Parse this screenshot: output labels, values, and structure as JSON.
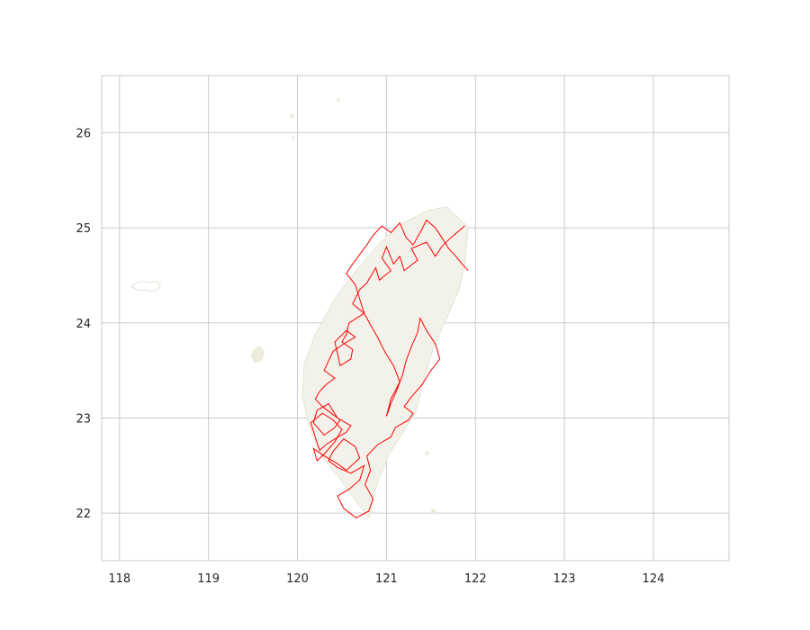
{
  "chart_data": {
    "type": "line",
    "title": "",
    "xlabel": "",
    "ylabel": "",
    "xlim": [
      117.8,
      124.85
    ],
    "ylim": [
      21.5,
      26.6
    ],
    "xticks": [
      118,
      119,
      120,
      121,
      122,
      123,
      124
    ],
    "yticks": [
      22,
      23,
      24,
      25,
      26
    ],
    "grid": true,
    "colors": {
      "route": "#ff0000",
      "land": "#e8e8dc",
      "grid": "#cccccc",
      "frame": "#cccccc",
      "text": "#262626"
    },
    "series": [
      {
        "x": [
          121.88,
          121.73,
          121.62,
          121.55,
          121.45,
          121.28,
          121.35,
          121.2,
          121.15,
          121.08,
          121.0,
          120.95,
          121.05,
          120.92,
          120.88,
          120.78,
          120.7,
          120.62,
          120.75,
          120.58,
          120.55,
          120.5,
          120.62,
          120.6,
          120.48,
          120.45,
          120.42,
          120.55,
          120.65,
          120.52,
          120.4,
          120.35,
          120.3,
          120.42,
          120.32,
          120.25,
          120.2,
          120.28,
          120.38,
          120.48,
          120.42,
          120.3,
          120.18,
          120.22,
          120.35,
          120.45,
          120.6,
          120.55,
          120.42,
          120.32,
          120.25,
          120.2,
          120.15,
          120.28,
          120.4,
          120.5,
          120.42,
          120.3,
          120.22,
          120.18,
          120.3,
          120.45,
          120.55,
          120.7,
          120.65,
          120.52,
          120.4,
          120.35,
          120.45,
          120.6,
          120.75,
          120.7,
          120.58,
          120.45,
          120.52,
          120.66,
          120.8,
          120.85,
          120.76,
          120.82,
          120.78,
          120.9,
          121.05,
          121.1,
          121.25,
          121.3,
          121.2,
          121.28,
          121.4,
          121.5,
          121.6,
          121.55,
          121.45,
          121.38,
          121.35,
          121.28,
          121.22,
          121.18,
          121.12,
          121.05,
          121.0,
          121.05,
          121.15,
          121.08,
          120.98,
          120.9,
          120.82,
          120.75,
          120.7,
          120.65,
          120.55,
          120.62,
          120.7,
          120.78,
          120.85,
          120.95,
          121.05,
          121.15,
          121.22,
          121.3,
          121.38,
          121.45,
          121.55,
          121.62,
          121.7,
          121.78,
          121.85,
          121.92
        ],
        "y": [
          25.02,
          24.9,
          24.8,
          24.7,
          24.85,
          24.78,
          24.66,
          24.55,
          24.7,
          24.62,
          24.8,
          24.68,
          24.55,
          24.45,
          24.58,
          24.42,
          24.35,
          24.2,
          24.1,
          24.0,
          23.88,
          23.8,
          23.72,
          23.62,
          23.55,
          23.68,
          23.8,
          23.92,
          23.85,
          23.78,
          23.7,
          23.6,
          23.5,
          23.42,
          23.35,
          23.28,
          23.2,
          23.12,
          23.05,
          22.98,
          22.9,
          22.82,
          22.95,
          23.08,
          23.15,
          23.0,
          22.92,
          22.85,
          22.78,
          22.72,
          22.66,
          22.8,
          22.95,
          23.05,
          22.98,
          22.88,
          22.75,
          22.62,
          22.55,
          22.68,
          22.6,
          22.52,
          22.45,
          22.58,
          22.7,
          22.78,
          22.65,
          22.55,
          22.48,
          22.42,
          22.5,
          22.35,
          22.25,
          22.18,
          22.05,
          21.95,
          22.02,
          22.15,
          22.3,
          22.45,
          22.6,
          22.72,
          22.8,
          22.9,
          22.98,
          23.05,
          23.12,
          23.22,
          23.35,
          23.5,
          23.62,
          23.78,
          23.92,
          24.05,
          23.9,
          23.75,
          23.6,
          23.45,
          23.3,
          23.15,
          23.02,
          23.2,
          23.38,
          23.55,
          23.7,
          23.85,
          23.98,
          24.1,
          24.25,
          24.4,
          24.52,
          24.62,
          24.72,
          24.82,
          24.92,
          25.02,
          24.95,
          25.05,
          24.9,
          24.82,
          24.95,
          25.08,
          25.0,
          24.9,
          24.78,
          24.7,
          24.62,
          24.55
        ]
      }
    ]
  }
}
